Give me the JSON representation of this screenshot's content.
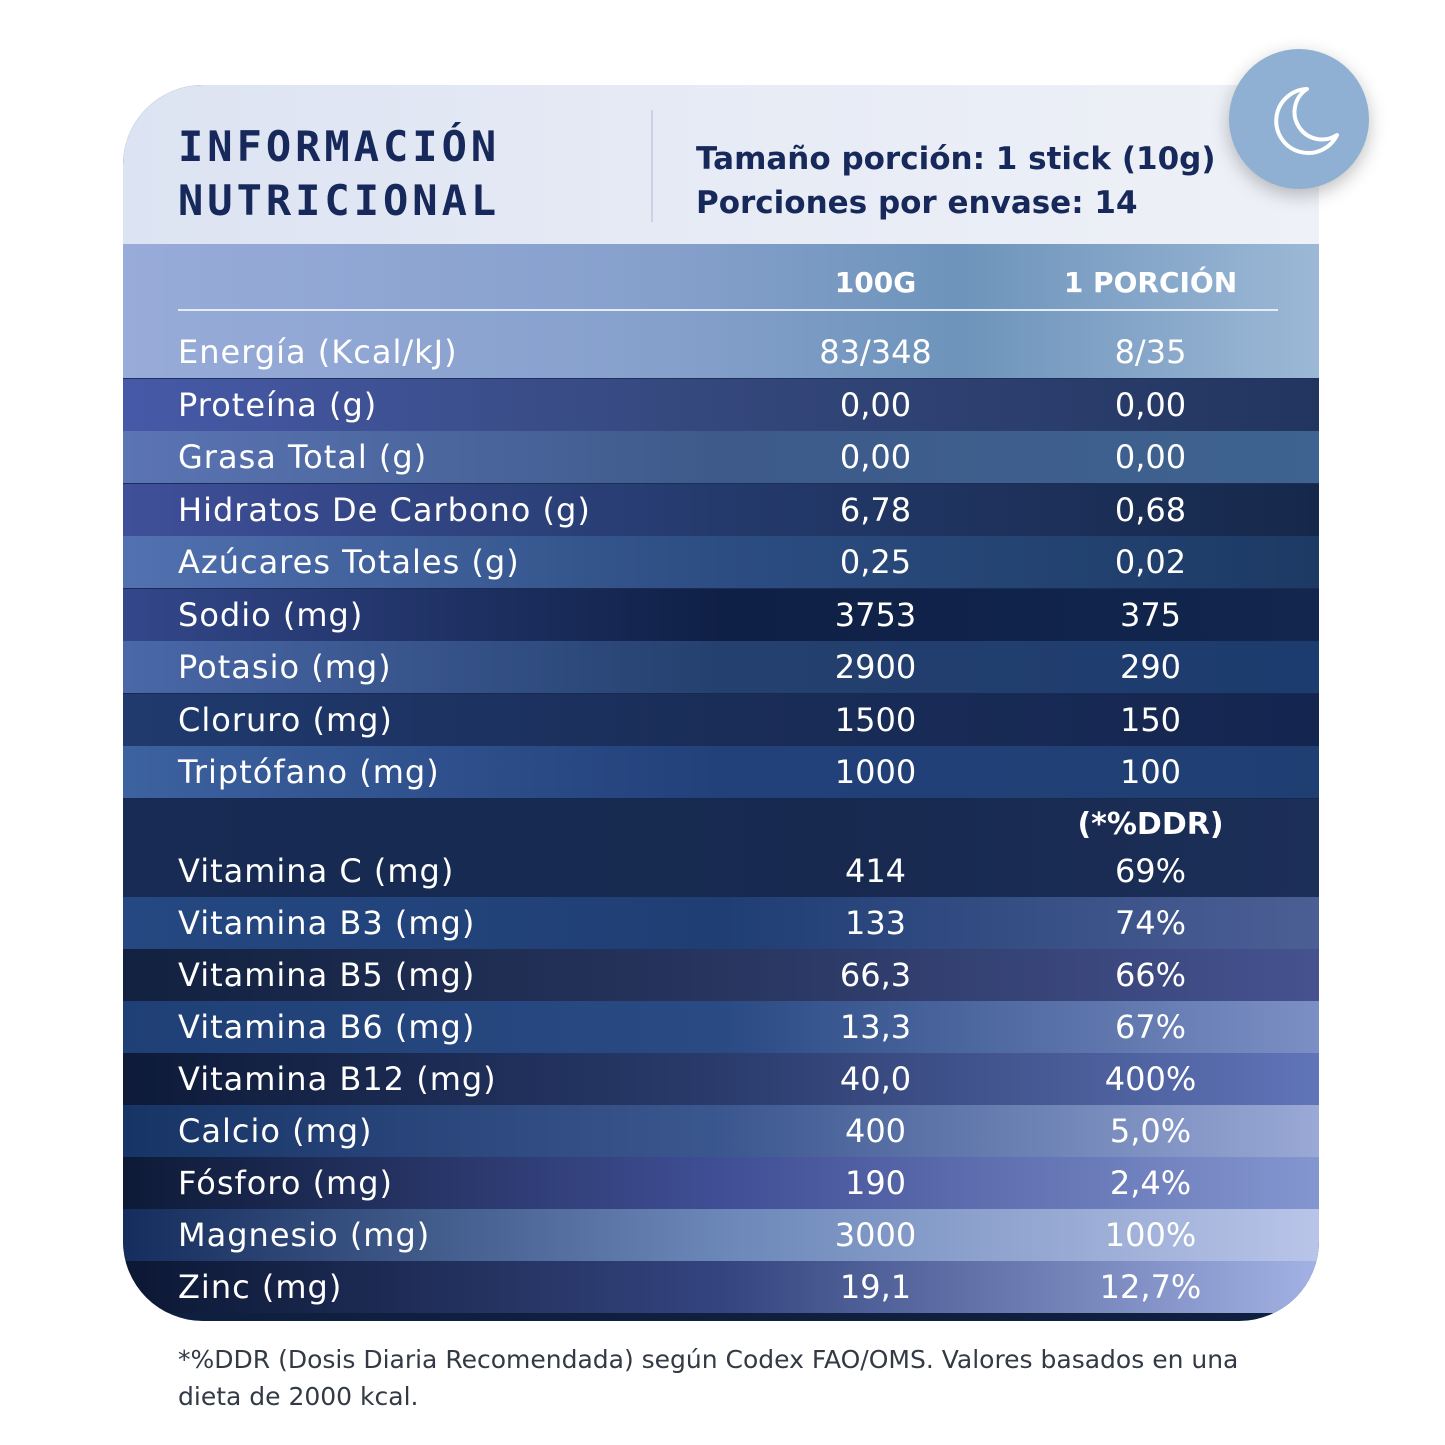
{
  "header": {
    "title_line1": "Información",
    "title_line2": "Nutricional",
    "serving_size": "Tamaño porción: 1 stick (10g)",
    "servings_per_container": "Porciones por envase: 14"
  },
  "icon": "moon-icon",
  "table": {
    "col_100g": "100G",
    "col_portion": "1 PORCIÓN",
    "rows": [
      {
        "label": "Energía (Kcal/kJ)",
        "v100": "83/348",
        "vport": "8/35"
      },
      {
        "label": "Proteína (g)",
        "v100": "0,00",
        "vport": "0,00"
      },
      {
        "label": "Grasa Total (g)",
        "v100": "0,00",
        "vport": "0,00"
      },
      {
        "label": "Hidratos De Carbono (g)",
        "v100": "6,78",
        "vport": "0,68"
      },
      {
        "label": "Azúcares Totales (g)",
        "v100": "0,25",
        "vport": "0,02"
      },
      {
        "label": "Sodio (mg)",
        "v100": "3753",
        "vport": "375"
      },
      {
        "label": "Potasio (mg)",
        "v100": "2900",
        "vport": "290"
      },
      {
        "label": "Cloruro (mg)",
        "v100": "1500",
        "vport": "150"
      },
      {
        "label": "Triptófano (mg)",
        "v100": "1000",
        "vport": "100"
      }
    ],
    "ddr_label": "(*%DDR)",
    "vitamin_rows": [
      {
        "label": "Vitamina C (mg)",
        "v100": "414",
        "vport": "69%"
      },
      {
        "label": "Vitamina B3 (mg)",
        "v100": "133",
        "vport": "74%"
      },
      {
        "label": "Vitamina B5 (mg)",
        "v100": "66,3",
        "vport": "66%"
      },
      {
        "label": "Vitamina B6 (mg)",
        "v100": "13,3",
        "vport": "67%"
      },
      {
        "label": "Vitamina B12 (mg)",
        "v100": "40,0",
        "vport": "400%"
      },
      {
        "label": "Calcio (mg)",
        "v100": "400",
        "vport": "5,0%"
      },
      {
        "label": "Fósforo (mg)",
        "v100": "190",
        "vport": "2,4%"
      },
      {
        "label": "Magnesio (mg)",
        "v100": "3000",
        "vport": "100%"
      },
      {
        "label": "Zinc (mg)",
        "v100": "19,1",
        "vport": "12,7%"
      }
    ]
  },
  "footnote": "*%DDR (Dosis Diaria Recomendada) según Codex FAO/OMS. Valores basados en una dieta de 2000 kcal."
}
